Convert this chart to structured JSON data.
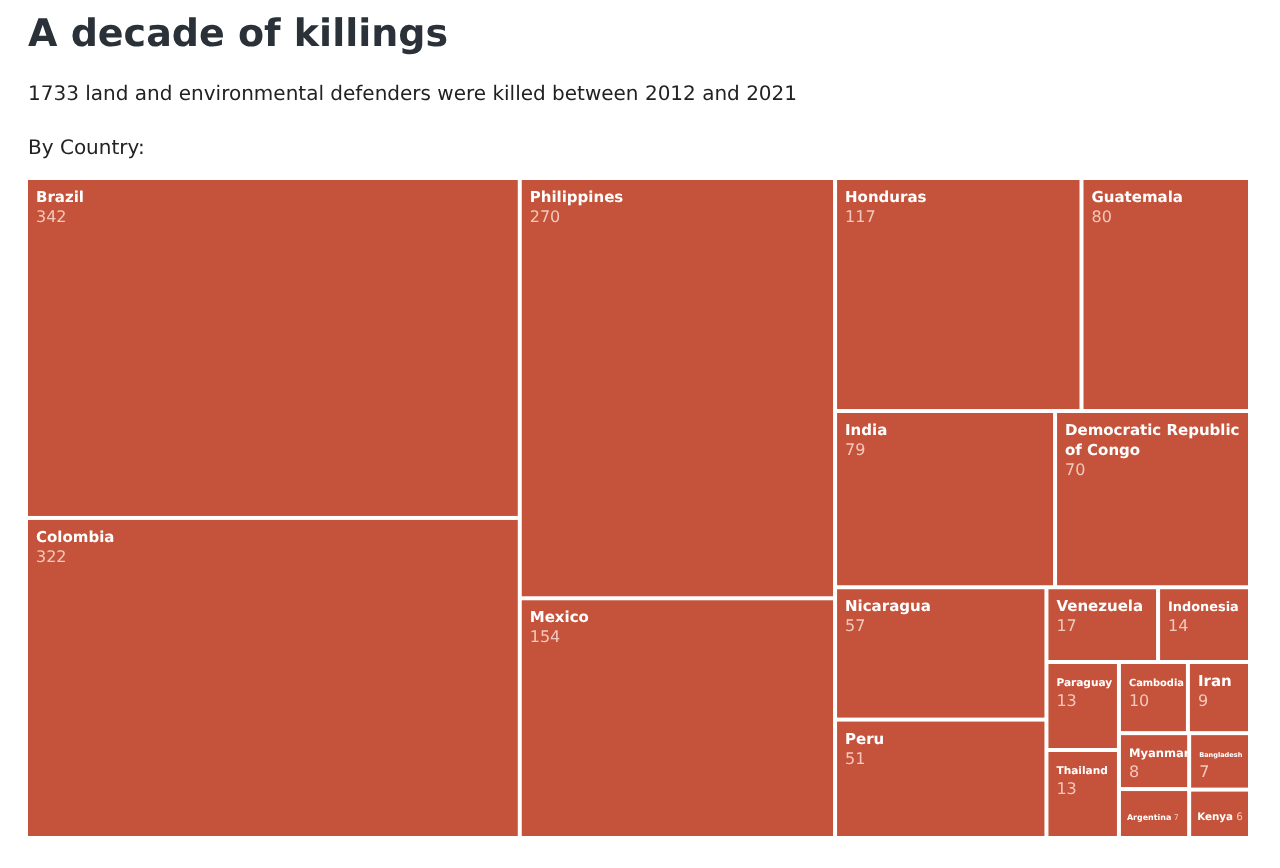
{
  "chart_data": {
    "type": "other",
    "title": "A decade of killings",
    "subtitle": "1733 land and environmental defenders were killed between 2012 and 2021",
    "annotations": [
      "By Country:"
    ],
    "categories": [
      "Brazil",
      "Colombia",
      "Philippines",
      "Mexico",
      "Honduras",
      "Guatemala",
      "India",
      "Democratic Republic of Congo",
      "Nicaragua",
      "Peru",
      "Venezuela",
      "Indonesia",
      "Paraguay",
      "Thailand",
      "Cambodia",
      "Iran",
      "Myanmar",
      "Argentina",
      "Bangladesh",
      "Kenya"
    ],
    "values": [
      342,
      322,
      270,
      154,
      117,
      80,
      79,
      70,
      57,
      51,
      17,
      14,
      13,
      13,
      10,
      9,
      8,
      7,
      7,
      6
    ],
    "color": "#c5533b",
    "data_labels": true
  }
}
